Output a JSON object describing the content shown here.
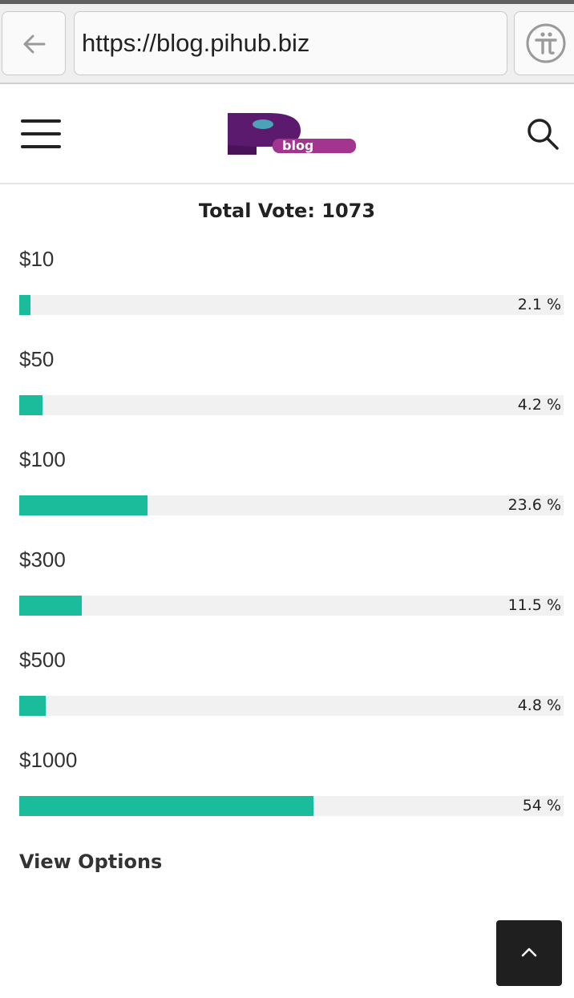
{
  "browser": {
    "url": "https://blog.pihub.biz",
    "back_icon": "arrow-left-icon",
    "pi_icon": "pi-network-icon"
  },
  "header": {
    "menu_icon": "hamburger-menu-icon",
    "logo_text": "blog",
    "search_icon": "search-icon",
    "logo_colors": {
      "primary": "#6b1f7a",
      "accent": "#4aa3b8"
    }
  },
  "poll": {
    "total_label": "Total Vote: 1073",
    "bar_color": "#1abc9c",
    "track_color": "#f1f1f1",
    "options": [
      {
        "label": "$10",
        "percent": 2.1,
        "percent_label": "2.1 %"
      },
      {
        "label": "$50",
        "percent": 4.2,
        "percent_label": "4.2 %"
      },
      {
        "label": "$100",
        "percent": 23.6,
        "percent_label": "23.6 %"
      },
      {
        "label": "$300",
        "percent": 11.5,
        "percent_label": "11.5 %"
      },
      {
        "label": "$500",
        "percent": 4.8,
        "percent_label": "4.8 %"
      },
      {
        "label": "$1000",
        "percent": 54,
        "percent_label": "54 %"
      }
    ],
    "view_options": "View Options"
  },
  "footer": {
    "scroll_top_icon": "chevron-up-icon"
  }
}
